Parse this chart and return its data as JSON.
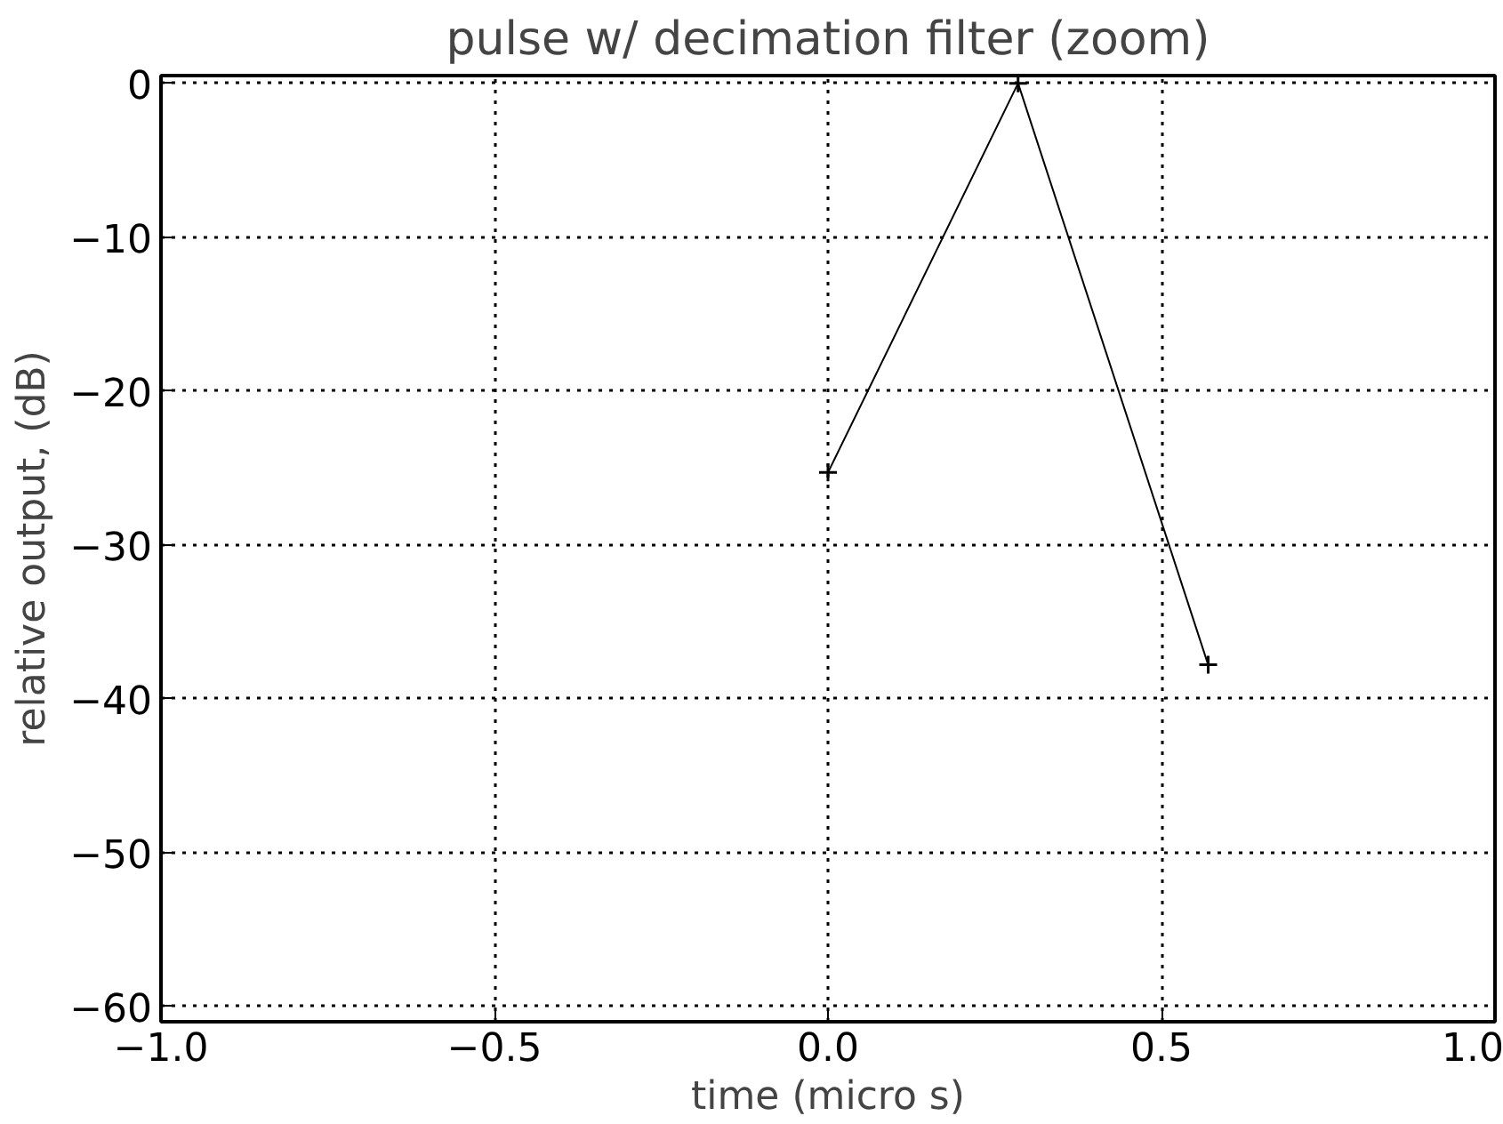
{
  "chart_data": {
    "type": "line",
    "title": "pulse w/ decimation filter (zoom)",
    "xlabel": "time (micro s)",
    "ylabel": "relative output, (dB)",
    "x": [
      0.0,
      0.285,
      0.57
    ],
    "series": [
      {
        "color": "#000000",
        "values": [
          -25.3,
          0,
          -37.8
        ]
      }
    ],
    "xlim": [
      -1,
      1
    ],
    "xticks": [
      {
        "value": -1,
        "label": "−1.0"
      },
      {
        "value": -0.5,
        "label": "−0.5"
      },
      {
        "value": 0,
        "label": "0.0"
      },
      {
        "value": 0.5,
        "label": "0.5"
      },
      {
        "value": 1,
        "label": "1.0"
      }
    ],
    "ylim": [
      -61,
      0.5
    ],
    "yticks": [
      {
        "value": -60,
        "label": "−60"
      },
      {
        "value": -50,
        "label": "−50"
      },
      {
        "value": -40,
        "label": "−40"
      },
      {
        "value": -30,
        "label": "−30"
      },
      {
        "value": -20,
        "label": "−20"
      },
      {
        "value": -10,
        "label": "−10"
      },
      0
    ],
    "grid": true,
    "marker": "cross",
    "line_style": "solid"
  }
}
